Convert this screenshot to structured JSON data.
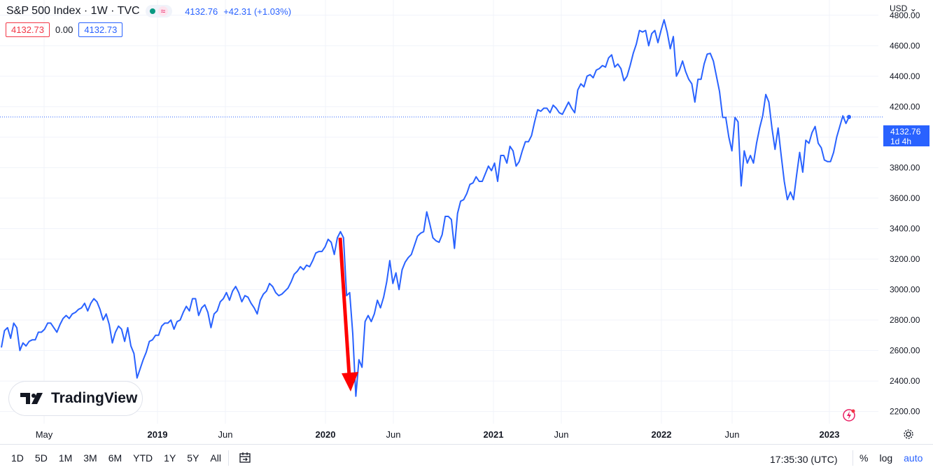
{
  "header": {
    "symbol": "S&P 500 Index · 1W · TVC",
    "indicator_glyph": "≈",
    "price": "4132.76",
    "change": "+42.31 (+1.03%)",
    "bid": "4132.73",
    "spread": "0.00",
    "ask": "4132.73"
  },
  "currency_menu": "USD",
  "currency_chevron": "⌄",
  "logo_text": "TradingView",
  "price_tag": {
    "value": "4132.76",
    "countdown": "1d 4h"
  },
  "time_axis": [
    "May",
    "2019",
    "Jun",
    "2020",
    "Jun",
    "2021",
    "Jun",
    "2022",
    "Jun",
    "2023"
  ],
  "bottom_bar": {
    "ranges": [
      "1D",
      "5D",
      "1M",
      "3M",
      "6M",
      "YTD",
      "1Y",
      "5Y",
      "All"
    ],
    "clock": "17:35:30 (UTC)",
    "percent_label": "%",
    "log_label": "log",
    "auto_label": "auto"
  },
  "colors": {
    "series": "#2962ff",
    "arrow": "#ff0000",
    "grid": "#f0f3fa",
    "down": "#f23645"
  },
  "chart_data": {
    "type": "line",
    "series": [
      {
        "values": [
          2620,
          2730,
          2750,
          2680,
          2780,
          2750,
          2600,
          2650,
          2630,
          2660,
          2670,
          2670,
          2720,
          2720,
          2740,
          2780,
          2780,
          2750,
          2720,
          2770,
          2810,
          2830,
          2810,
          2840,
          2850,
          2870,
          2880,
          2910,
          2860,
          2910,
          2940,
          2920,
          2870,
          2800,
          2840,
          2770,
          2650,
          2720,
          2760,
          2740,
          2660,
          2750,
          2630,
          2580,
          2420,
          2480,
          2540,
          2590,
          2660,
          2670,
          2700,
          2700,
          2760,
          2780,
          2780,
          2800,
          2740,
          2790,
          2800,
          2850,
          2890,
          2860,
          2940,
          2940,
          2830,
          2880,
          2900,
          2850,
          2750,
          2840,
          2860,
          2920,
          2940,
          2980,
          2930,
          2990,
          3020,
          2980,
          2920,
          2960,
          2950,
          2910,
          2880,
          2840,
          2930,
          2970,
          2990,
          3040,
          3020,
          2980,
          2960,
          2970,
          2990,
          3010,
          3050,
          3100,
          3120,
          3150,
          3130,
          3160,
          3150,
          3190,
          3240,
          3250,
          3250,
          3280,
          3330,
          3310,
          3230,
          3340,
          3380,
          3340,
          2960,
          2980,
          2710,
          2300,
          2540,
          2490,
          2790,
          2830,
          2790,
          2840,
          2930,
          2880,
          2950,
          3050,
          3190,
          3040,
          3110,
          3000,
          3130,
          3180,
          3210,
          3230,
          3290,
          3350,
          3370,
          3380,
          3510,
          3430,
          3340,
          3320,
          3310,
          3360,
          3480,
          3480,
          3460,
          3270,
          3500,
          3580,
          3590,
          3630,
          3690,
          3700,
          3740,
          3710,
          3710,
          3760,
          3810,
          3780,
          3830,
          3710,
          3880,
          3880,
          3830,
          3940,
          3910,
          3810,
          3840,
          3910,
          3970,
          3970,
          4010,
          4100,
          4180,
          4170,
          4190,
          4190,
          4160,
          4210,
          4190,
          4160,
          4150,
          4190,
          4230,
          4190,
          4160,
          4310,
          4350,
          4330,
          4400,
          4410,
          4390,
          4440,
          4450,
          4470,
          4460,
          4520,
          4540,
          4460,
          4480,
          4450,
          4370,
          4400,
          4470,
          4550,
          4610,
          4700,
          4690,
          4700,
          4600,
          4680,
          4700,
          4620,
          4700,
          4770,
          4690,
          4580,
          4660,
          4400,
          4440,
          4500,
          4430,
          4380,
          4350,
          4230,
          4380,
          4380,
          4480,
          4545,
          4550,
          4500,
          4400,
          4300,
          4130,
          4130,
          4000,
          3910,
          4130,
          4100,
          3680,
          3910,
          3830,
          3880,
          3830,
          3960,
          4060,
          4140,
          4280,
          4230,
          4060,
          3920,
          4060,
          3880,
          3710,
          3590,
          3640,
          3590,
          3750,
          3900,
          3770,
          3980,
          3960,
          4030,
          4070,
          3960,
          3930,
          3850,
          3840,
          3840,
          3900,
          4000,
          4070,
          4140,
          4090,
          4132.76
        ]
      }
    ],
    "ylim": [
      2120,
      4900
    ],
    "y_ticks": [
      2200,
      2400,
      2600,
      2800,
      3000,
      3200,
      3400,
      3600,
      3800,
      4000,
      4200,
      4400,
      4600,
      4800
    ],
    "y_tick_labels": [
      "2200.00",
      "2400.00",
      "2600.00",
      "2800.00",
      "3000.00",
      "3200.00",
      "3400.00",
      "3600.00",
      "3800.00",
      "4000.00",
      "4200.00",
      "4400.00",
      "4600.00",
      "4800.00"
    ],
    "last_value": 4132.76,
    "grid": true,
    "annotation": {
      "type": "arrow",
      "from_value": 3340,
      "to_value": 2340
    }
  }
}
